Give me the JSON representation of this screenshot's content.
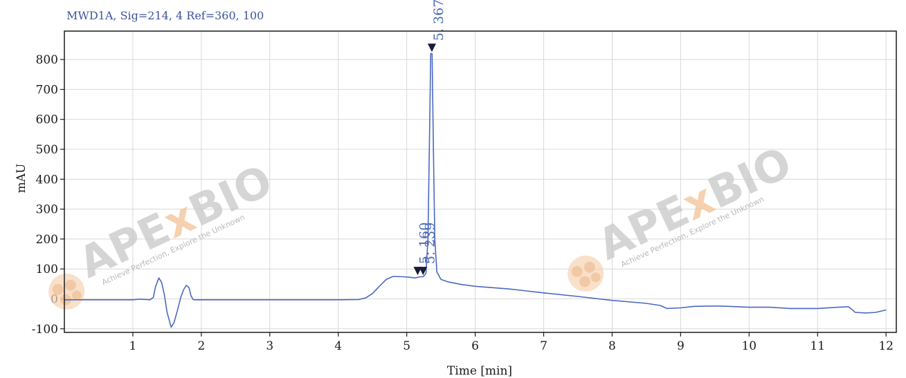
{
  "chart_data": {
    "type": "line",
    "title": "MWD1A, Sig=214, 4   Ref=360, 100",
    "xlabel": "Time [min]",
    "ylabel": "mAU",
    "xlim": [
      0,
      12.15
    ],
    "ylim": [
      -112,
      895
    ],
    "grid": true,
    "x_ticks": [
      1,
      2,
      3,
      4,
      5,
      6,
      7,
      8,
      9,
      10,
      11,
      12
    ],
    "y_ticks": [
      -100,
      0,
      100,
      200,
      300,
      400,
      500,
      600,
      700,
      800
    ],
    "series": [
      {
        "x": [
          0,
          0.5,
          1.0,
          1.1,
          1.2,
          1.25,
          1.3,
          1.33,
          1.38,
          1.42,
          1.46,
          1.5,
          1.56,
          1.6,
          1.65,
          1.7,
          1.74,
          1.78,
          1.82,
          1.85,
          1.88,
          1.9,
          2.0,
          2.5,
          3.0,
          3.5,
          4.0,
          4.3,
          4.4,
          4.5,
          4.6,
          4.7,
          4.8,
          4.95,
          5.05,
          5.12,
          5.16,
          5.2,
          5.24,
          5.28,
          5.31,
          5.33,
          5.35,
          5.37,
          5.39,
          5.41,
          5.44,
          5.5,
          5.6,
          5.8,
          6.0,
          6.5,
          7.0,
          7.5,
          8.0,
          8.5,
          8.7,
          8.8,
          9.0,
          9.2,
          9.4,
          9.6,
          10.0,
          10.3,
          10.6,
          11.0,
          11.3,
          11.45,
          11.5,
          11.55,
          11.7,
          11.85,
          12.0
        ],
        "y": [
          -3,
          -3,
          -3,
          -1,
          -2,
          -3,
          5,
          40,
          70,
          55,
          15,
          -45,
          -95,
          -80,
          -40,
          5,
          30,
          45,
          38,
          10,
          -2,
          -3,
          -3,
          -3,
          -3,
          -3,
          -3,
          -2,
          3,
          18,
          42,
          65,
          75,
          74,
          72,
          70,
          72,
          74,
          74,
          85,
          200,
          500,
          820,
          820,
          500,
          200,
          90,
          65,
          57,
          48,
          42,
          33,
          20,
          8,
          -5,
          -15,
          -22,
          -32,
          -30,
          -25,
          -24,
          -24,
          -28,
          -28,
          -32,
          -32,
          -28,
          -26,
          -35,
          -45,
          -47,
          -45,
          -37
        ]
      }
    ],
    "annotations": [
      {
        "x": 5.16,
        "y": 84,
        "label": "5. 160"
      },
      {
        "x": 5.239,
        "y": 84,
        "label": "5. 239"
      },
      {
        "x": 5.367,
        "y": 830,
        "label": "5. 367"
      }
    ]
  },
  "watermark": {
    "brand_left": "APE",
    "brand_mid": "x",
    "brand_right": "BIO",
    "tagline": "Achieve Perfection, Explore the Unknown"
  },
  "colors": {
    "trace": "#4a68c0",
    "frame": "#1a1a1a",
    "grid": "#d8d8d8",
    "watermark_accent": "#f4c9a3"
  }
}
